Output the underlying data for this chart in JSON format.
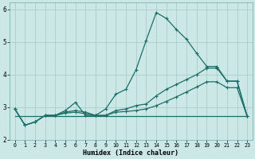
{
  "title": "",
  "xlabel": "Humidex (Indice chaleur)",
  "background_color": "#cce8e6",
  "grid_color": "#aaccca",
  "line_color": "#1a6e6a",
  "xlim": [
    -0.5,
    23.5
  ],
  "ylim": [
    2.0,
    6.2
  ],
  "yticks": [
    2,
    3,
    4,
    5,
    6
  ],
  "xticks": [
    0,
    1,
    2,
    3,
    4,
    5,
    6,
    7,
    8,
    9,
    10,
    11,
    12,
    13,
    14,
    15,
    16,
    17,
    18,
    19,
    20,
    21,
    22,
    23
  ],
  "line1_x": [
    0,
    1,
    2,
    3,
    4,
    5,
    6,
    7,
    8,
    9,
    10,
    11,
    12,
    13,
    14,
    15,
    16,
    17,
    18,
    19,
    20,
    21,
    22,
    23
  ],
  "line1_y": [
    2.95,
    2.45,
    2.55,
    2.75,
    2.75,
    2.9,
    3.15,
    2.75,
    2.75,
    2.95,
    3.4,
    3.55,
    4.15,
    5.05,
    5.9,
    5.72,
    5.38,
    5.08,
    4.65,
    4.25,
    4.25,
    3.8,
    3.8,
    2.72
  ],
  "line2_x": [
    0,
    1,
    2,
    3,
    4,
    5,
    6,
    7,
    8,
    9,
    10,
    11,
    12,
    13,
    14,
    15,
    16,
    17,
    18,
    19,
    20,
    21,
    22,
    23
  ],
  "line2_y": [
    2.95,
    2.45,
    2.55,
    2.75,
    2.75,
    2.85,
    2.9,
    2.85,
    2.75,
    2.75,
    2.9,
    2.95,
    3.05,
    3.1,
    3.35,
    3.55,
    3.7,
    3.85,
    4.0,
    4.2,
    4.2,
    3.8,
    3.8,
    2.72
  ],
  "line3_x": [
    0,
    1,
    2,
    3,
    4,
    5,
    6,
    7,
    8,
    9,
    10,
    11,
    12,
    13,
    14,
    15,
    16,
    17,
    18,
    19,
    20,
    21,
    22,
    23
  ],
  "line3_y": [
    2.95,
    2.45,
    2.55,
    2.75,
    2.75,
    2.82,
    2.85,
    2.8,
    2.75,
    2.75,
    2.85,
    2.87,
    2.9,
    2.95,
    3.05,
    3.18,
    3.32,
    3.47,
    3.62,
    3.78,
    3.78,
    3.6,
    3.6,
    2.72
  ],
  "line4_x": [
    0,
    23
  ],
  "line4_y": [
    2.72,
    2.72
  ],
  "marker": "+",
  "markersize": 3.5,
  "linewidth": 0.9
}
